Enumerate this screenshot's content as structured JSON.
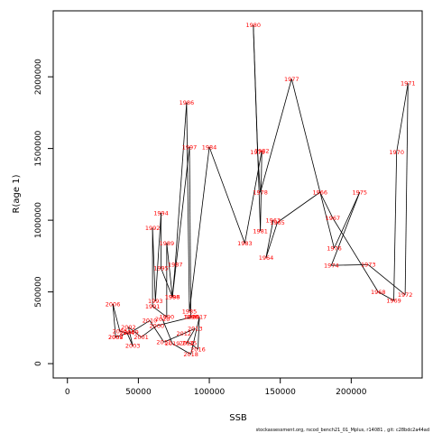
{
  "chart_data": {
    "type": "line",
    "title": "",
    "xlabel": "SSB",
    "ylabel": "R(age 1)",
    "xlim": [
      -10000,
      250000
    ],
    "ylim": [
      -100000,
      2460000
    ],
    "x_ticks": [
      0,
      50000,
      100000,
      150000,
      200000
    ],
    "x_tick_labels": [
      "0",
      "50000",
      "100000",
      "150000",
      "200000"
    ],
    "y_ticks": [
      0,
      500000,
      1000000,
      1500000,
      2000000
    ],
    "y_tick_labels": [
      "0",
      "500000",
      "1000000",
      "1500000",
      "2000000"
    ],
    "grid": false,
    "series": [
      {
        "points": [
          {
            "year": "1963",
            "ssb": 145000,
            "r": 1000000
          },
          {
            "year": "1964",
            "ssb": 140000,
            "r": 740000
          },
          {
            "year": "1965",
            "ssb": 148000,
            "r": 985000
          },
          {
            "year": "1966",
            "ssb": 178000,
            "r": 1195000
          },
          {
            "year": "1967",
            "ssb": 187000,
            "r": 1015000
          },
          {
            "year": "1968",
            "ssb": 219000,
            "r": 500000
          },
          {
            "year": "1969",
            "ssb": 230000,
            "r": 440000
          },
          {
            "year": "1970",
            "ssb": 232000,
            "r": 1475000
          },
          {
            "year": "1971",
            "ssb": 240000,
            "r": 1955000
          },
          {
            "year": "1972",
            "ssb": 238000,
            "r": 480000
          },
          {
            "year": "1973",
            "ssb": 212000,
            "r": 690000
          },
          {
            "year": "1974",
            "ssb": 186000,
            "r": 685000
          },
          {
            "year": "1975",
            "ssb": 206000,
            "r": 1195000
          },
          {
            "year": "1976",
            "ssb": 188000,
            "r": 805000
          },
          {
            "year": "1977",
            "ssb": 158000,
            "r": 1985000
          },
          {
            "year": "1978",
            "ssb": 136000,
            "r": 1195000
          },
          {
            "year": "1979",
            "ssb": 134000,
            "r": 1475000
          },
          {
            "year": "1980",
            "ssb": 131000,
            "r": 2360000
          },
          {
            "year": "1981",
            "ssb": 136000,
            "r": 925000
          },
          {
            "year": "1982",
            "ssb": 137000,
            "r": 1485000
          },
          {
            "year": "1983",
            "ssb": 125000,
            "r": 840000
          },
          {
            "year": "1984",
            "ssb": 100000,
            "r": 1510000
          },
          {
            "year": "1985",
            "ssb": 86000,
            "r": 365000
          },
          {
            "year": "1986",
            "ssb": 84000,
            "r": 1820000
          },
          {
            "year": "1987",
            "ssb": 76000,
            "r": 690000
          },
          {
            "year": "1988",
            "ssb": 74000,
            "r": 465000
          },
          {
            "year": "1989",
            "ssb": 70000,
            "r": 840000
          },
          {
            "year": "1990",
            "ssb": 70000,
            "r": 325000
          },
          {
            "year": "1991",
            "ssb": 60000,
            "r": 400000
          },
          {
            "year": "1992",
            "ssb": 60000,
            "r": 945000
          },
          {
            "year": "1993",
            "ssb": 62000,
            "r": 435000
          },
          {
            "year": "1994",
            "ssb": 66000,
            "r": 1050000
          },
          {
            "year": "1995",
            "ssb": 66000,
            "r": 665000
          },
          {
            "year": "1996",
            "ssb": 74000,
            "r": 465000
          },
          {
            "year": "1997",
            "ssb": 86000,
            "r": 1510000
          },
          {
            "year": "1998",
            "ssb": 87000,
            "r": 325000
          },
          {
            "year": "1999",
            "ssb": 88000,
            "r": 325000
          },
          {
            "year": "2000",
            "ssb": 63000,
            "r": 265000
          },
          {
            "year": "2001",
            "ssb": 52000,
            "r": 185000
          },
          {
            "year": "2002",
            "ssb": 43000,
            "r": 255000
          },
          {
            "year": "2003",
            "ssb": 46000,
            "r": 125000
          },
          {
            "year": "2004",
            "ssb": 42000,
            "r": 215000
          },
          {
            "year": "2005",
            "ssb": 37000,
            "r": 225000
          },
          {
            "year": "2006",
            "ssb": 32000,
            "r": 415000
          },
          {
            "year": "2007",
            "ssb": 34000,
            "r": 185000
          },
          {
            "year": "2008",
            "ssb": 34000,
            "r": 185000
          },
          {
            "year": "2009",
            "ssb": 45000,
            "r": 220000
          },
          {
            "year": "2010",
            "ssb": 58000,
            "r": 300000
          },
          {
            "year": "2011",
            "ssb": 68000,
            "r": 150000
          },
          {
            "year": "2012",
            "ssb": 82000,
            "r": 210000
          },
          {
            "year": "2013",
            "ssb": 90000,
            "r": 245000
          },
          {
            "year": "2014",
            "ssb": 84000,
            "r": 145000
          },
          {
            "year": "2015",
            "ssb": 86000,
            "r": 145000
          },
          {
            "year": "2016",
            "ssb": 92000,
            "r": 100000
          },
          {
            "year": "2017",
            "ssb": 93000,
            "r": 325000
          },
          {
            "year": "2018",
            "ssb": 87000,
            "r": 65000
          },
          {
            "year": "2019",
            "ssb": 74000,
            "r": 140000
          },
          {
            "year": "2020",
            "ssb": 67000,
            "r": 310000
          }
        ]
      }
    ]
  },
  "footer_text": "stockassessment.org, rscod_bench21_01_Mplus, r14081 , git: c28bdc2a44ad"
}
